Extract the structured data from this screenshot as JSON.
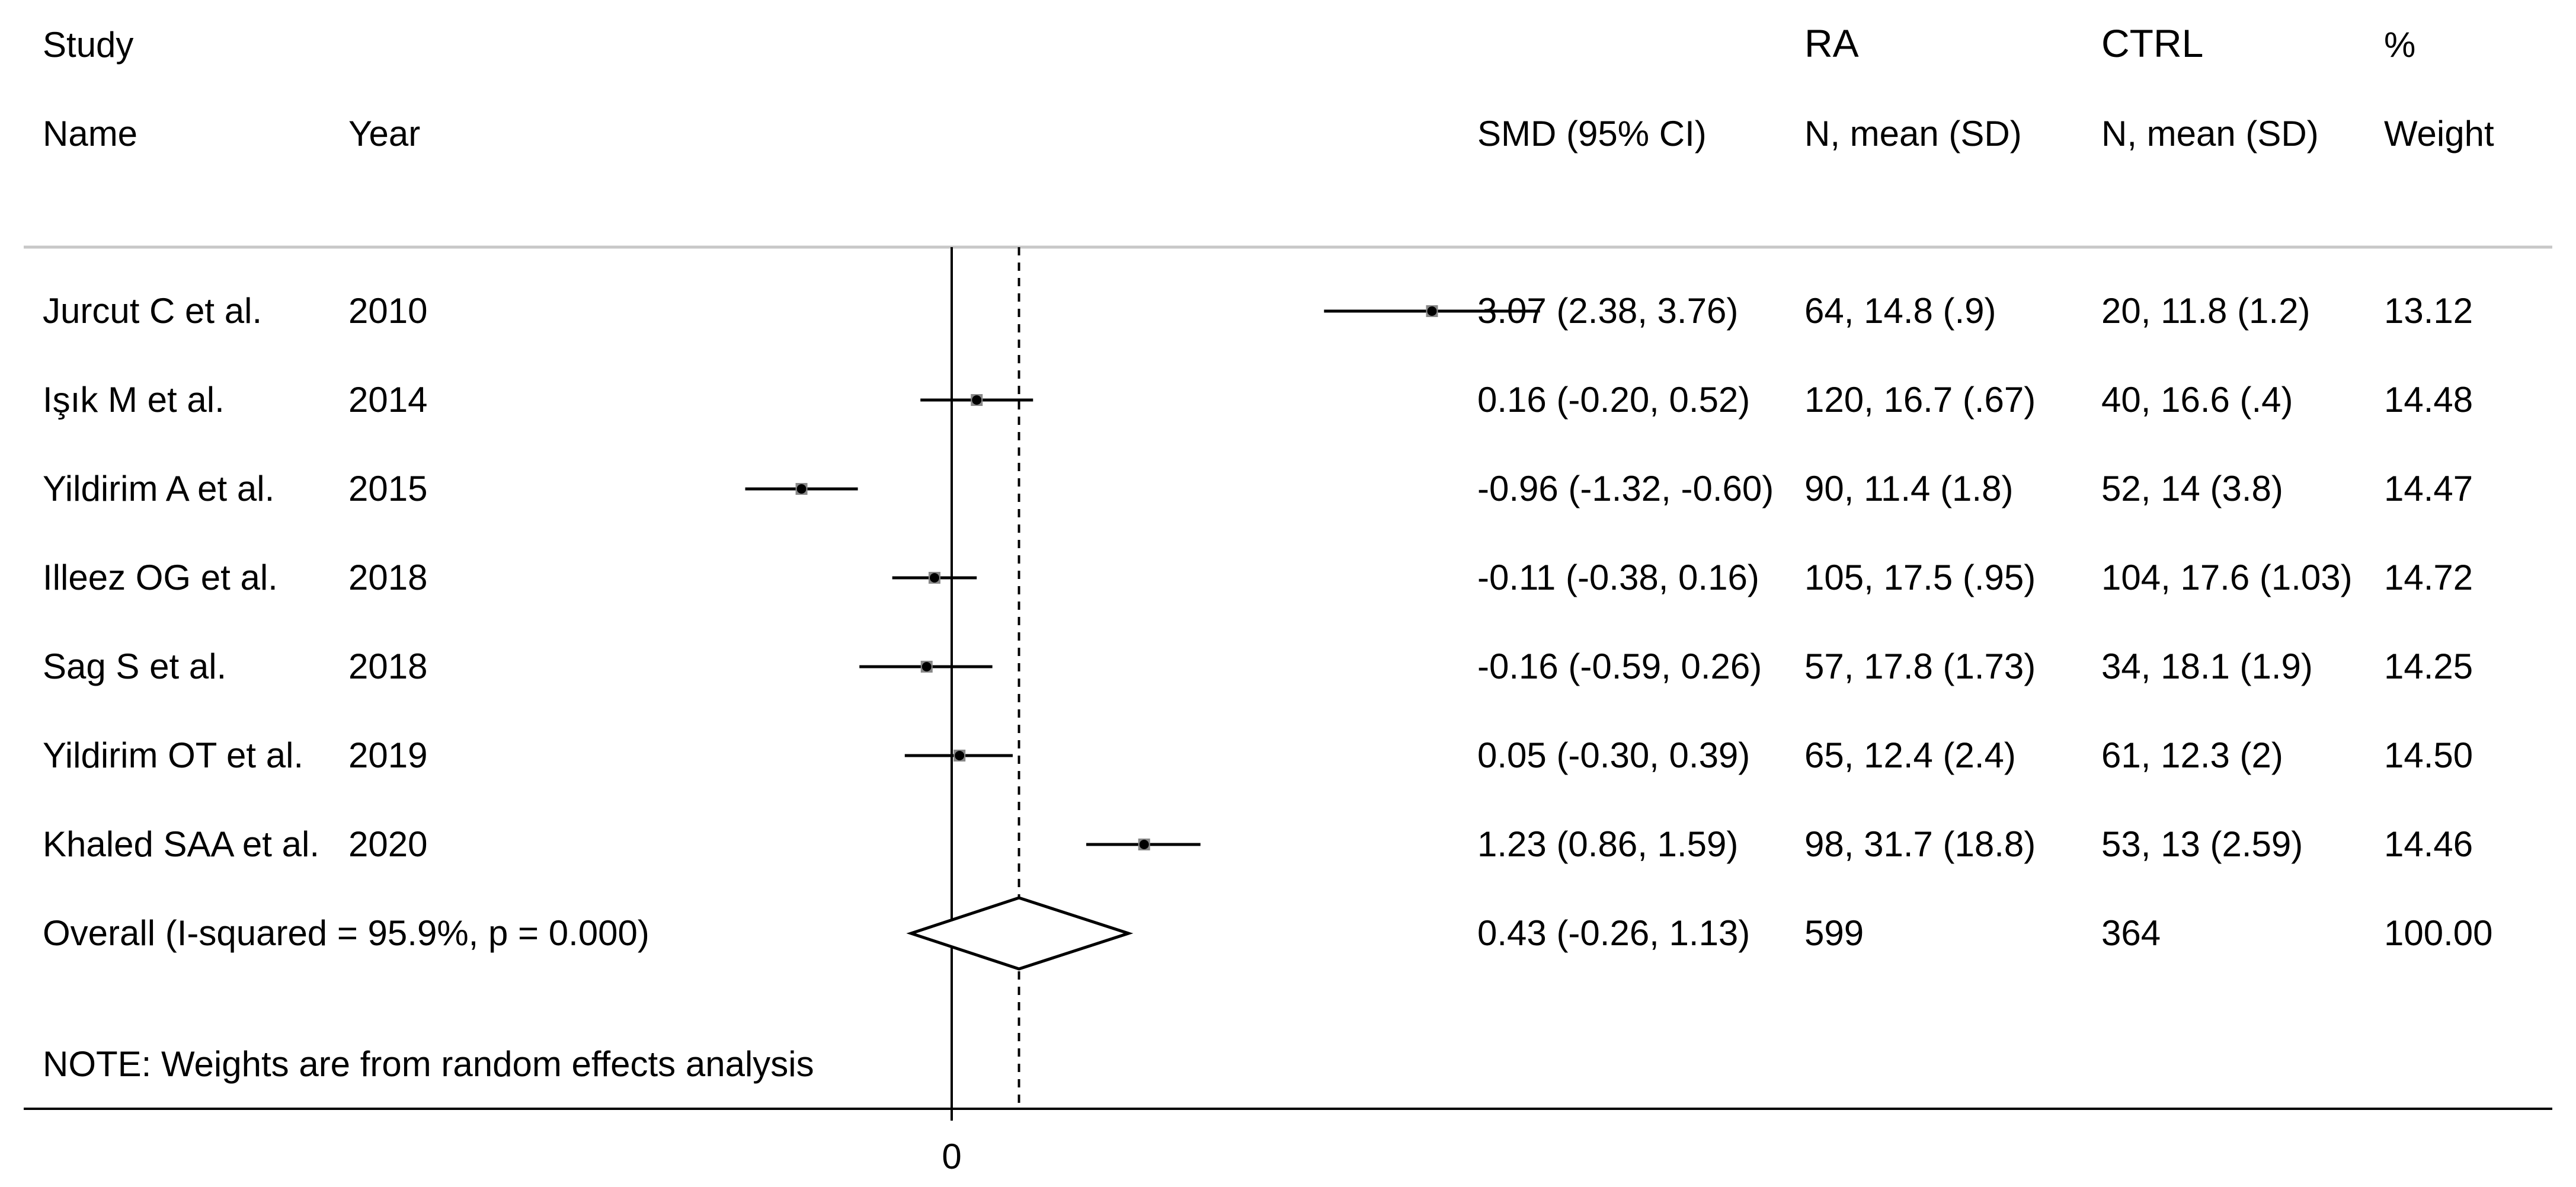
{
  "headers": {
    "study": "Study",
    "name": "Name",
    "year": "Year",
    "smd": "SMD (95% CI)",
    "ra": "RA",
    "ra_sub": "N, mean (SD)",
    "ctrl": "CTRL",
    "ctrl_sub": "N, mean (SD)",
    "pct": "%",
    "weight": "Weight"
  },
  "chart_data": {
    "type": "forest",
    "xlabel": "",
    "x_ticks": [
      "0"
    ],
    "reference_value": 0,
    "pooled_value": 0.43,
    "xlim": [
      -1.5,
      3.9
    ],
    "studies": [
      {
        "name": "Jurcut C et al.",
        "year": "2010",
        "smd": 3.07,
        "lo": 2.38,
        "hi": 3.76,
        "smd_text": "3.07 (2.38, 3.76)",
        "ra": "64, 14.8 (.9)",
        "ctrl": "20, 11.8 (1.2)",
        "weight": "13.12"
      },
      {
        "name": "Işık M et al.",
        "year": "2014",
        "smd": 0.16,
        "lo": -0.2,
        "hi": 0.52,
        "smd_text": "0.16 (-0.20, 0.52)",
        "ra": "120, 16.7 (.67)",
        "ctrl": "40, 16.6 (.4)",
        "weight": "14.48"
      },
      {
        "name": "Yildirim A et al.",
        "year": "2015",
        "smd": -0.96,
        "lo": -1.32,
        "hi": -0.6,
        "smd_text": "-0.96 (-1.32, -0.60)",
        "ra": "90, 11.4 (1.8)",
        "ctrl": "52, 14 (3.8)",
        "weight": "14.47"
      },
      {
        "name": "Illeez OG et al.",
        "year": "2018",
        "smd": -0.11,
        "lo": -0.38,
        "hi": 0.16,
        "smd_text": "-0.11 (-0.38, 0.16)",
        "ra": "105, 17.5 (.95)",
        "ctrl": "104, 17.6 (1.03)",
        "weight": "14.72"
      },
      {
        "name": "Sag S et al.",
        "year": "2018",
        "smd": -0.16,
        "lo": -0.59,
        "hi": 0.26,
        "smd_text": "-0.16 (-0.59, 0.26)",
        "ra": "57, 17.8 (1.73)",
        "ctrl": "34, 18.1 (1.9)",
        "weight": "14.25"
      },
      {
        "name": "Yildirim OT et al.",
        "year": "2019",
        "smd": 0.05,
        "lo": -0.3,
        "hi": 0.39,
        "smd_text": "0.05 (-0.30, 0.39)",
        "ra": "65, 12.4 (2.4)",
        "ctrl": "61, 12.3 (2)",
        "weight": "14.50"
      },
      {
        "name": "Khaled SAA et al.",
        "year": "2020",
        "smd": 1.23,
        "lo": 0.86,
        "hi": 1.59,
        "smd_text": "1.23 (0.86, 1.59)",
        "ra": "98, 31.7 (18.8)",
        "ctrl": "53, 13 (2.59)",
        "weight": "14.46"
      }
    ],
    "overall": {
      "label": "Overall  (I-squared = 95.9%, p = 0.000)",
      "smd": 0.43,
      "lo": -0.26,
      "hi": 1.13,
      "smd_text": "0.43 (-0.26, 1.13)",
      "ra": "599",
      "ctrl": "364",
      "weight": "100.00"
    },
    "note": "NOTE: Weights are from random effects analysis"
  }
}
